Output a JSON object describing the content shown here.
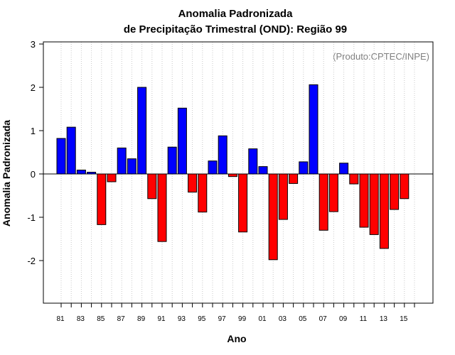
{
  "chart_data": {
    "type": "bar",
    "title": "Anomalia Padronizada",
    "subtitle": "de Precipitação Trimestral (OND): Região 99",
    "xlabel": "Ano",
    "ylabel": "Anomalia Padronizada",
    "credit": "(Produto:CPTEC/INPE)",
    "ylim": [
      -3,
      3
    ],
    "yticks": [
      "3",
      "2",
      "1",
      "0",
      "-1",
      "-2"
    ],
    "ytick_values": [
      3,
      2,
      1,
      0,
      -1,
      -2
    ],
    "xtick_labels": [
      "81",
      "83",
      "85",
      "87",
      "89",
      "91",
      "93",
      "95",
      "97",
      "99",
      "01",
      "03",
      "05",
      "07",
      "09",
      "11",
      "13",
      "15"
    ],
    "categories": [
      "1981",
      "1982",
      "1983",
      "1984",
      "1985",
      "1986",
      "1987",
      "1988",
      "1989",
      "1990",
      "1991",
      "1992",
      "1993",
      "1994",
      "1995",
      "1996",
      "1997",
      "1998",
      "1999",
      "2000",
      "2001",
      "2002",
      "2003",
      "2004",
      "2005",
      "2006",
      "2007",
      "2008",
      "2009",
      "2010",
      "2011",
      "2012",
      "2013",
      "2014",
      "2015",
      "2016"
    ],
    "values": [
      0.82,
      1.08,
      0.09,
      0.04,
      -1.17,
      -0.18,
      0.6,
      0.35,
      2.0,
      -0.57,
      -1.56,
      0.62,
      1.52,
      -0.42,
      -0.88,
      0.3,
      0.88,
      -0.06,
      -1.34,
      0.58,
      0.17,
      -1.98,
      -1.05,
      -0.22,
      0.28,
      2.06,
      -1.3,
      -0.87,
      0.25,
      -0.23,
      -1.23,
      -1.4,
      -1.72,
      -0.82,
      -0.57,
      null
    ],
    "positive_color": "#0000ff",
    "negative_color": "#ff0000",
    "grid": "vertical dotted"
  }
}
